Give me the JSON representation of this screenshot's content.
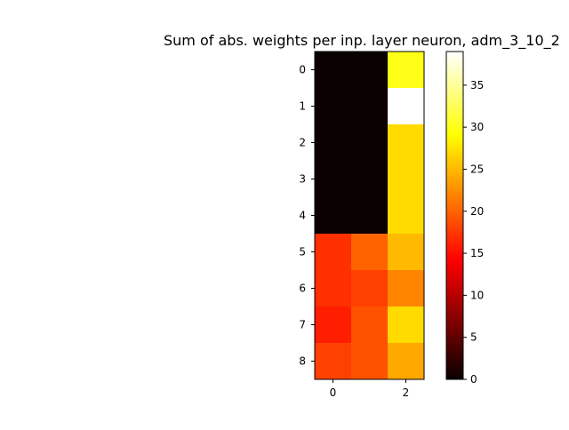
{
  "chart_data": {
    "type": "heatmap",
    "title": "Sum of abs. weights per inp. layer neuron, adm_3_10_2",
    "xlabel": "",
    "ylabel": "",
    "x_ticks": [
      0,
      2
    ],
    "y_ticks": [
      0,
      1,
      2,
      3,
      4,
      5,
      6,
      7,
      8
    ],
    "colormap": "hot",
    "vmin": 0,
    "vmax": 39,
    "colorbar_ticks": [
      0,
      5,
      10,
      15,
      20,
      25,
      30,
      35
    ],
    "rows": 9,
    "cols": 3,
    "values": [
      [
        0,
        0,
        30
      ],
      [
        0,
        0,
        39
      ],
      [
        0,
        0,
        27
      ],
      [
        0,
        0,
        27
      ],
      [
        0,
        0,
        27
      ],
      [
        17,
        20,
        25
      ],
      [
        17,
        18,
        22
      ],
      [
        16,
        19,
        27
      ],
      [
        18,
        19,
        24
      ]
    ]
  }
}
